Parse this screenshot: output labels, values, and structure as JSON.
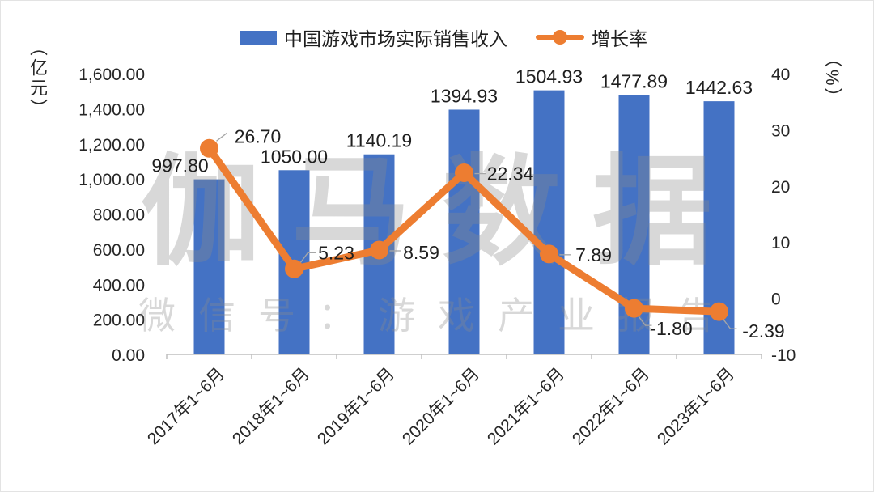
{
  "chart_data": {
    "type": "bar",
    "subtype": "bar-line-combo",
    "categories": [
      "2017年1~6月",
      "2018年1~6月",
      "2019年1~6月",
      "2020年1~6月",
      "2021年1~6月",
      "2022年1~6月",
      "2023年1~6月"
    ],
    "series": [
      {
        "name": "中国游戏市场实际销售收入",
        "type": "bar",
        "axis": "left",
        "color": "#4472C4",
        "values": [
          997.8,
          1050.0,
          1140.19,
          1394.93,
          1504.93,
          1477.89,
          1442.63
        ],
        "labels": [
          "997.80",
          "1050.00",
          "1140.19",
          "1394.93",
          "1504.93",
          "1477.89",
          "1442.63"
        ]
      },
      {
        "name": "增长率",
        "type": "line",
        "axis": "right",
        "color": "#ED7D31",
        "values": [
          26.7,
          5.23,
          8.59,
          22.34,
          7.89,
          -1.8,
          -2.39
        ],
        "labels": [
          "26.70",
          "5.23",
          "8.59",
          "22.34",
          "7.89",
          "-1.80",
          "-2.39"
        ]
      }
    ],
    "left_axis": {
      "title": "（亿元）",
      "min": 0,
      "max": 1600,
      "tick_values": [
        1600,
        1400,
        1200,
        1000,
        800,
        600,
        400,
        200,
        0
      ],
      "tick_labels": [
        "1,600.00",
        "1,400.00",
        "1,200.00",
        "1,000.00",
        "800.00",
        "600.00",
        "400.00",
        "200.00",
        "0.00"
      ]
    },
    "right_axis": {
      "title": "（%）",
      "min": -10,
      "max": 40,
      "tick_values": [
        40,
        30,
        20,
        10,
        0,
        -10
      ],
      "tick_labels": [
        "40",
        "30",
        "20",
        "10",
        "0",
        "-10"
      ]
    },
    "legend_position": "top",
    "grid": false,
    "watermark": {
      "line1": "伽马数据",
      "line2": "微信号：游戏产业报告"
    },
    "colors": {
      "bar": "#4472C4",
      "line": "#ED7D31",
      "axis_line": "#BFBFBF",
      "leader_line": "#A6A6A6",
      "text": "#1f1f1f",
      "watermark": "#8C8C8C"
    }
  }
}
